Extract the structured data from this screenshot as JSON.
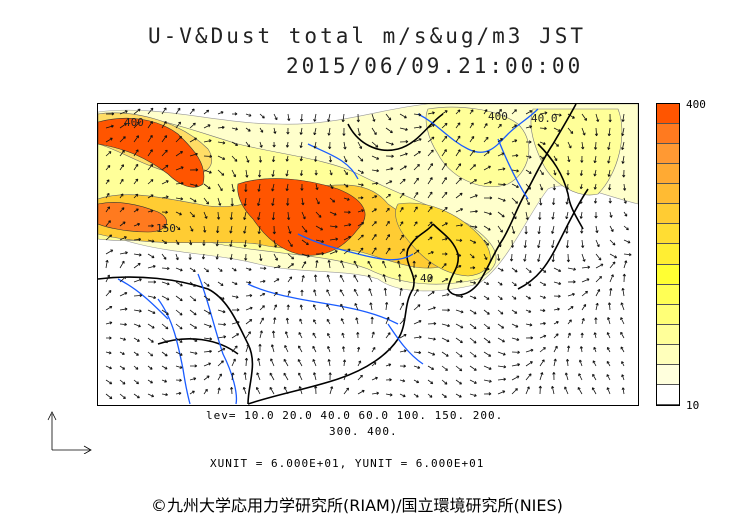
{
  "header": {
    "title": "U-V&Dust total m/s&ug/m3 JST",
    "datetime": "2015/06/09.21:00:00"
  },
  "legend": {
    "max_label": "400",
    "min_label": "10",
    "colors": [
      "#ff5500",
      "#ff7a1f",
      "#ff9933",
      "#ffaa33",
      "#ffbb33",
      "#ffcc33",
      "#ffdd33",
      "#ffee33",
      "#ffff33",
      "#ffff55",
      "#ffff77",
      "#ffff99",
      "#ffffbb",
      "#ffffdd",
      "#ffffff"
    ]
  },
  "levels": {
    "line1": "lev= 10.0 20.0 40.0 60.0 100. 150. 200.",
    "line2": "300. 400."
  },
  "units": {
    "text": "XUNIT = 6.000E+01, YUNIT = 6.000E+01"
  },
  "map": {
    "contour_labels": [
      "400",
      "150",
      "40",
      "400",
      "40.0"
    ],
    "colors": {
      "dust_high": "#ff5500",
      "dust_mid": "#ffcc33",
      "dust_low": "#ffff99",
      "dust_faint": "#ffffcc",
      "coastline": "#000000",
      "river": "#1a5cff"
    }
  },
  "credit": "©九州大学応用力学研究所(RIAM)/国立環境研究所(NIES)"
}
